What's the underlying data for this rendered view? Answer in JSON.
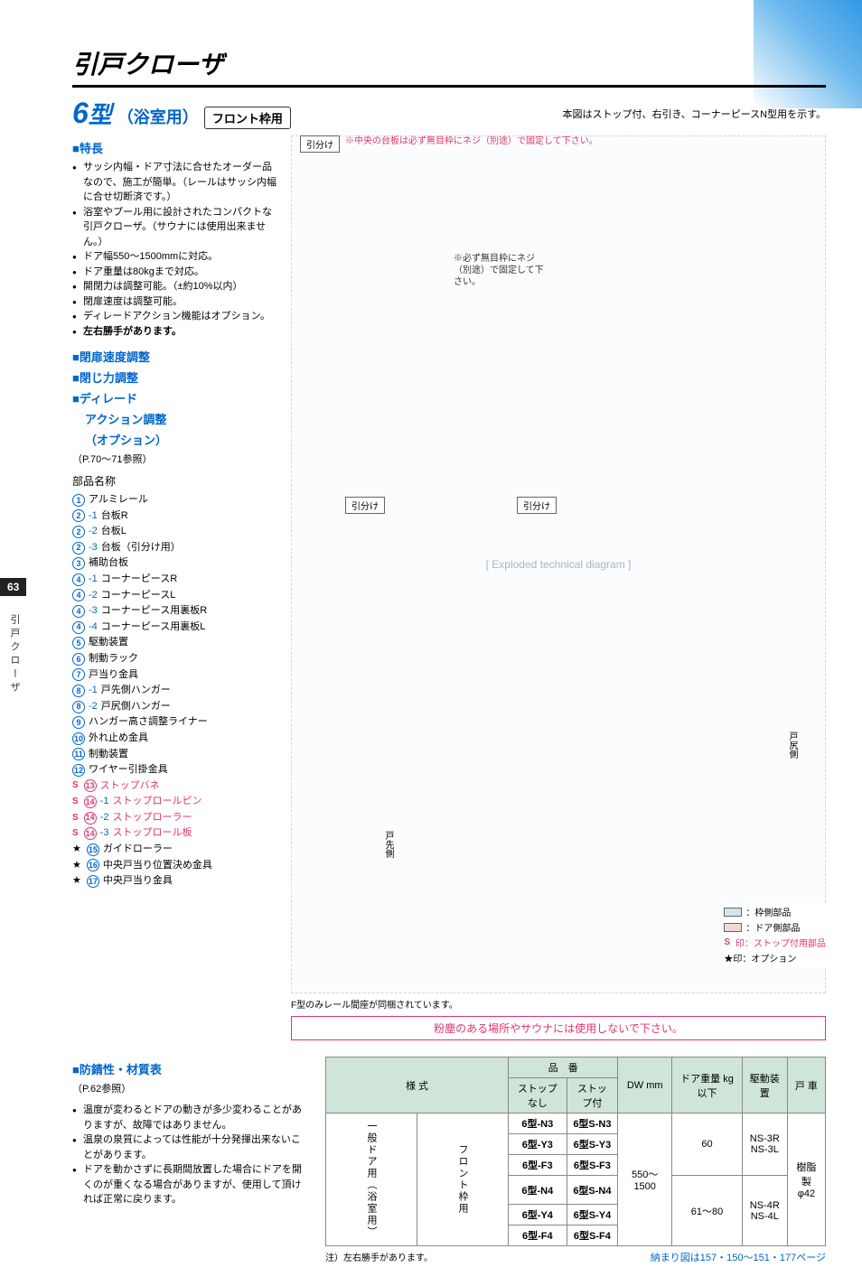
{
  "page_number": "63",
  "side_label": "引戸クローザ",
  "category_title": "引戸クローザ",
  "model": {
    "number": "6",
    "suffix_type": "型",
    "usage": "（浴室用）",
    "badge": "フロント枠用"
  },
  "top_note": "本図はストップ付、右引き、コーナーピースN型用を示す。",
  "features": {
    "heading": "■特長",
    "items": [
      "サッシ内幅・ドア寸法に合せたオーダー品なので、施工が簡単。（レールはサッシ内幅に合せ切断済です。）",
      "浴室やプール用に設計されたコンパクトな引戸クローザ。（サウナには使用出来ません。）",
      "ドア幅550〜1500mmに対応。",
      "ドア重量は80kgまで対応。",
      "開閉力は調整可能。（±約10%以内）",
      "閉扉速度は調整可能。",
      "ディレードアクション機能はオプション。",
      "左右勝手があります。"
    ]
  },
  "adjustments": {
    "h1": "■閉扉速度調整",
    "h2": "■閉じ力調整",
    "h3": "■ディレード",
    "h3b": "アクション調整",
    "h3c": "（オプション）",
    "ref": "（P.70〜71参照）"
  },
  "parts": {
    "title": "部品名称",
    "list": [
      {
        "num": "1",
        "label": "アルミレール"
      },
      {
        "num": "2",
        "sub": "-1",
        "label": "台板R"
      },
      {
        "num": "2",
        "sub": "-2",
        "label": "台板L"
      },
      {
        "num": "2",
        "sub": "-3",
        "label": "台板（引分け用）"
      },
      {
        "num": "3",
        "label": "補助台板"
      },
      {
        "num": "4",
        "sub": "-1",
        "label": "コーナーピースR"
      },
      {
        "num": "4",
        "sub": "-2",
        "label": "コーナーピースL"
      },
      {
        "num": "4",
        "sub": "-3",
        "label": "コーナーピース用裏板R"
      },
      {
        "num": "4",
        "sub": "-4",
        "label": "コーナーピース用裏板L"
      },
      {
        "num": "5",
        "label": "駆動装置"
      },
      {
        "num": "6",
        "label": "制動ラック"
      },
      {
        "num": "7",
        "label": "戸当り金具"
      },
      {
        "num": "8",
        "sub": "-1",
        "label": "戸先側ハンガー"
      },
      {
        "num": "8",
        "sub": "-2",
        "label": "戸尻側ハンガー"
      },
      {
        "num": "9",
        "label": "ハンガー高さ調整ライナー"
      },
      {
        "num": "10",
        "label": "外れ止め金具"
      },
      {
        "num": "11",
        "label": "制動装置"
      },
      {
        "num": "12",
        "label": "ワイヤー引掛金具"
      },
      {
        "num": "13",
        "label": "ストップバネ",
        "s": true,
        "red": true
      },
      {
        "num": "14",
        "sub": "-1",
        "label": "ストップロールピン",
        "s": true,
        "red": true
      },
      {
        "num": "14",
        "sub": "-2",
        "label": "ストップローラー",
        "s": true,
        "red": true
      },
      {
        "num": "14",
        "sub": "-3",
        "label": "ストップロール板",
        "s": true,
        "red": true
      },
      {
        "num": "15",
        "label": "ガイドローラー",
        "star": true
      },
      {
        "num": "16",
        "label": "中央戸当り位置決め金具",
        "star": true
      },
      {
        "num": "17",
        "label": "中央戸当り金具",
        "star": true
      }
    ]
  },
  "diagram": {
    "hikiwake1": "引分け",
    "hikiwake2": "引分け",
    "hikiwake3": "引分け",
    "center_note_red": "※中央の台板は必ず無目枠にネジ（別途）で固定して下さい。",
    "mid_note": "※必ず無目枠にネジ（別途）で固定して下さい。",
    "door_tail": "戸尻側",
    "door_head": "戸先側",
    "caption": "F型のみレール間座が同梱されています。",
    "legend": {
      "frame": "：枠側部品",
      "door": "：ドア側部品",
      "stop": "印：ストップ付用部品",
      "option": "★印：オプション",
      "frame_color": "#d0e6f0",
      "door_color": "#f5d6d6",
      "s_mark": "S"
    }
  },
  "warning": "粉塵のある場所やサウナには使用しないで下さい。",
  "material": {
    "heading": "■防錆性・材質表",
    "ref": "（P.62参照）",
    "notes": [
      "温度が変わるとドアの動きが多少変わることがありますが、故障ではありません。",
      "温泉の泉質によっては性能が十分発揮出来ないことがあります。",
      "ドアを動かさずに長期間放置した場合にドアを開くのが重くなる場合がありますが、使用して頂ければ正常に戻ります。"
    ]
  },
  "table": {
    "headers": {
      "style": "様 式",
      "part_no": "品　番",
      "no_stop": "ストップなし",
      "with_stop": "ストップ付",
      "dw": "DW mm",
      "weight": "ドア重量 kg以下",
      "drive": "駆動装置",
      "wheel": "戸 車"
    },
    "style_v1": "一般ドア用（浴室用）",
    "style_v2": "フロント枠用",
    "rows": [
      {
        "no": "6型-N3",
        "stop": "6型S-N3"
      },
      {
        "no": "6型-Y3",
        "stop": "6型S-Y3"
      },
      {
        "no": "6型-F3",
        "stop": "6型S-F3"
      },
      {
        "no": "6型-N4",
        "stop": "6型S-N4"
      },
      {
        "no": "6型-Y4",
        "stop": "6型S-Y4"
      },
      {
        "no": "6型-F4",
        "stop": "6型S-F4"
      }
    ],
    "dw_val": "550〜1500",
    "weight1": "60",
    "weight2": "61〜80",
    "drive1": "NS-3R\nNS-3L",
    "drive2": "NS-4R\nNS-4L",
    "wheel_val": "樹脂製\nφ42",
    "foot_note": "注）左右勝手があります。",
    "foot_ref": "納まり図は157・150〜151・177ページ"
  },
  "colors": {
    "blue": "#0066cc",
    "red": "#e6336e",
    "table_header_bg": "#cfe5d8"
  }
}
